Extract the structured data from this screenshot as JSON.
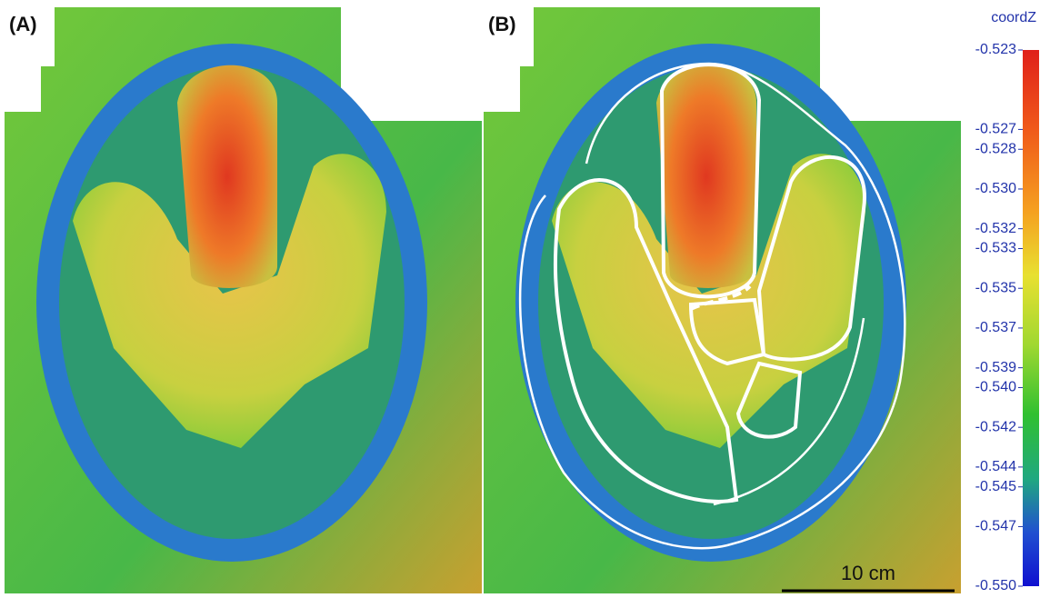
{
  "panels": [
    {
      "label": "(A)"
    },
    {
      "label": "(B)"
    }
  ],
  "colorbar": {
    "title": "coordZ",
    "lim": [
      -0.523,
      -0.55
    ],
    "ticks": [
      -0.523,
      -0.527,
      -0.528,
      {
        "value": -0.53,
        "label": "-0.530"
      },
      -0.532,
      -0.533,
      -0.535,
      -0.537,
      -0.539,
      {
        "value": -0.54,
        "label": "-0.540"
      },
      -0.542,
      -0.544,
      -0.545,
      -0.547,
      {
        "value": -0.55,
        "label": "-0.550"
      }
    ]
  },
  "scale_bar": {
    "label": "10 cm"
  }
}
